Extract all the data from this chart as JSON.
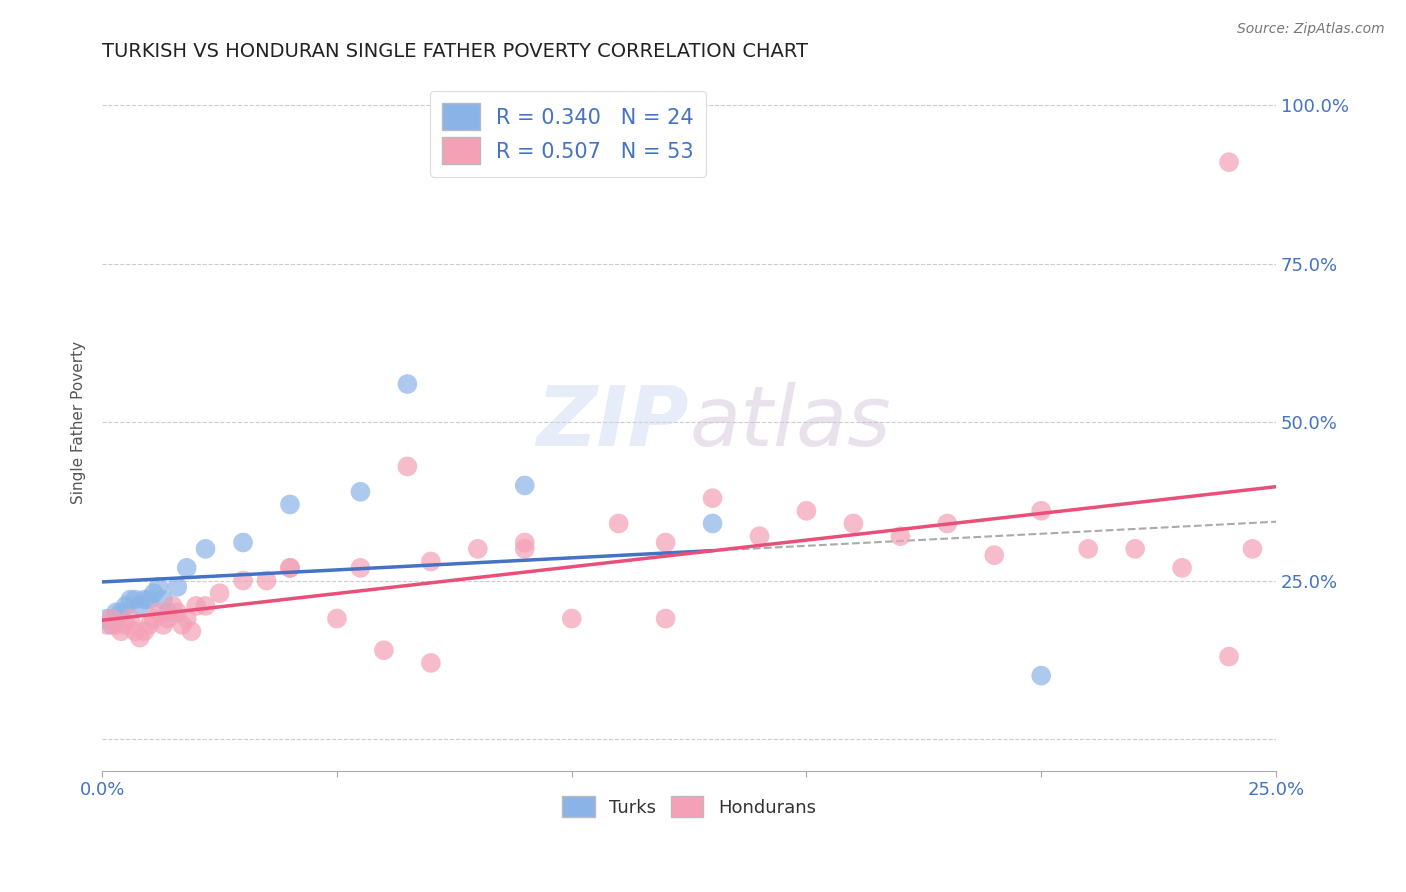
{
  "title": "TURKISH VS HONDURAN SINGLE FATHER POVERTY CORRELATION CHART",
  "source": "Source: ZipAtlas.com",
  "ylabel": "Single Father Poverty",
  "xlim": [
    0.0,
    0.25
  ],
  "ylim": [
    -0.05,
    1.05
  ],
  "x_tick_positions": [
    0.0,
    0.05,
    0.1,
    0.15,
    0.2,
    0.25
  ],
  "x_tick_labels": [
    "0.0%",
    "",
    "",
    "",
    "",
    "25.0%"
  ],
  "y_tick_positions": [
    0.0,
    0.25,
    0.5,
    0.75,
    1.0
  ],
  "y_tick_labels": [
    "",
    "25.0%",
    "50.0%",
    "75.0%",
    "100.0%"
  ],
  "turks_color": "#8ab4e8",
  "hondurans_color": "#f4a0b5",
  "turks_line_color": "#4472c4",
  "hondurans_line_color": "#e8507a",
  "turks_R": 0.34,
  "turks_N": 24,
  "hondurans_R": 0.507,
  "hondurans_N": 53,
  "background_color": "#ffffff",
  "grid_color": "#cccccc",
  "turks_x": [
    0.001,
    0.002,
    0.003,
    0.004,
    0.005,
    0.006,
    0.007,
    0.008,
    0.009,
    0.01,
    0.011,
    0.012,
    0.013,
    0.014,
    0.016,
    0.018,
    0.022,
    0.03,
    0.04,
    0.055,
    0.065,
    0.09,
    0.13,
    0.2
  ],
  "turks_y": [
    0.19,
    0.18,
    0.2,
    0.2,
    0.21,
    0.22,
    0.22,
    0.21,
    0.22,
    0.22,
    0.23,
    0.24,
    0.22,
    0.2,
    0.24,
    0.27,
    0.3,
    0.31,
    0.37,
    0.39,
    0.56,
    0.4,
    0.34,
    0.1
  ],
  "hondurans_x": [
    0.001,
    0.002,
    0.003,
    0.004,
    0.005,
    0.006,
    0.007,
    0.008,
    0.009,
    0.01,
    0.011,
    0.012,
    0.013,
    0.014,
    0.015,
    0.016,
    0.017,
    0.018,
    0.019,
    0.02,
    0.022,
    0.025,
    0.03,
    0.035,
    0.04,
    0.05,
    0.055,
    0.065,
    0.07,
    0.08,
    0.09,
    0.1,
    0.11,
    0.12,
    0.13,
    0.14,
    0.15,
    0.16,
    0.17,
    0.18,
    0.19,
    0.2,
    0.21,
    0.22,
    0.23,
    0.24,
    0.245,
    0.12,
    0.09,
    0.07,
    0.04,
    0.06,
    0.24
  ],
  "hondurans_y": [
    0.18,
    0.19,
    0.18,
    0.17,
    0.18,
    0.19,
    0.17,
    0.16,
    0.17,
    0.18,
    0.19,
    0.2,
    0.18,
    0.19,
    0.21,
    0.2,
    0.18,
    0.19,
    0.17,
    0.21,
    0.21,
    0.23,
    0.25,
    0.25,
    0.27,
    0.19,
    0.27,
    0.43,
    0.28,
    0.3,
    0.31,
    0.19,
    0.34,
    0.31,
    0.38,
    0.32,
    0.36,
    0.34,
    0.32,
    0.34,
    0.29,
    0.36,
    0.3,
    0.3,
    0.27,
    0.13,
    0.3,
    0.19,
    0.3,
    0.12,
    0.27,
    0.14,
    0.91
  ]
}
